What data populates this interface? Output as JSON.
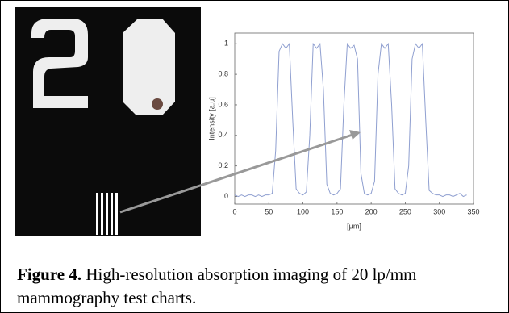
{
  "chart_data": {
    "type": "line",
    "ylabel": "Intensity [a.u]",
    "xlabel": "[µm]",
    "x": [
      0,
      5,
      10,
      15,
      20,
      25,
      30,
      35,
      40,
      45,
      50,
      55,
      60,
      65,
      70,
      75,
      80,
      85,
      90,
      95,
      100,
      105,
      110,
      115,
      120,
      125,
      130,
      135,
      140,
      145,
      150,
      155,
      160,
      165,
      170,
      175,
      180,
      185,
      190,
      195,
      200,
      205,
      210,
      215,
      220,
      225,
      230,
      235,
      240,
      245,
      250,
      255,
      260,
      265,
      270,
      275,
      280,
      285,
      290,
      295,
      300,
      305,
      310,
      315,
      320,
      325,
      330,
      335,
      340
    ],
    "series": [
      {
        "color": "#8f9fd0",
        "values": [
          0.01,
          0.0,
          0.01,
          0.0,
          0.01,
          0.01,
          0.0,
          0.01,
          0.0,
          0.01,
          0.01,
          0.02,
          0.3,
          0.95,
          1.0,
          0.97,
          1.0,
          0.5,
          0.05,
          0.02,
          0.01,
          0.03,
          0.4,
          1.0,
          0.97,
          1.0,
          0.7,
          0.08,
          0.02,
          0.01,
          0.02,
          0.05,
          0.6,
          1.0,
          0.97,
          0.99,
          0.9,
          0.15,
          0.02,
          0.01,
          0.02,
          0.1,
          0.8,
          1.0,
          0.97,
          1.0,
          0.6,
          0.05,
          0.02,
          0.01,
          0.02,
          0.2,
          0.9,
          1.0,
          0.97,
          1.0,
          0.5,
          0.04,
          0.02,
          0.01,
          0.01,
          0.0,
          0.01,
          0.01,
          0.0,
          0.01,
          0.02,
          0.0,
          0.01
        ]
      }
    ],
    "xlim": [
      0,
      350
    ],
    "ylim": [
      -0.05,
      1.07
    ],
    "xticks": [
      0,
      50,
      100,
      150,
      200,
      250,
      300,
      350
    ],
    "yticks": [
      0,
      0.2,
      0.4,
      0.6,
      0.8,
      1
    ]
  },
  "caption": {
    "label": "Figure 4.",
    "text": "High-resolution absorption imaging of  20 lp/mm mammography test charts."
  }
}
